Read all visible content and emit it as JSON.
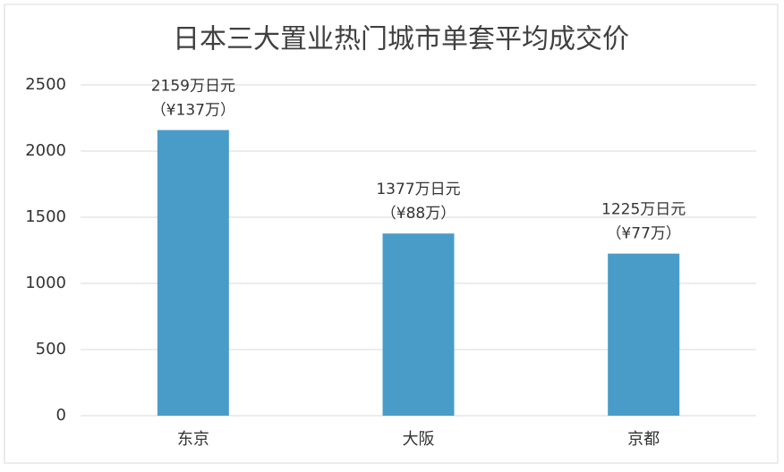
{
  "chart_data": {
    "type": "bar",
    "title": "日本三大置业热门城市单套平均成交价",
    "categories": [
      "东京",
      "大阪",
      "京都"
    ],
    "values": [
      2159,
      1377,
      1225
    ],
    "value_labels": [
      "2159万日元",
      "1377万日元",
      "1225万日元"
    ],
    "annotations": [
      "（¥137万）",
      "（¥88万）",
      "（¥77万）"
    ],
    "color": "#4a9cc8",
    "ylim": [
      0,
      2500
    ],
    "yticks": [
      0,
      500,
      1000,
      1500,
      2000,
      2500
    ],
    "grid": true
  }
}
